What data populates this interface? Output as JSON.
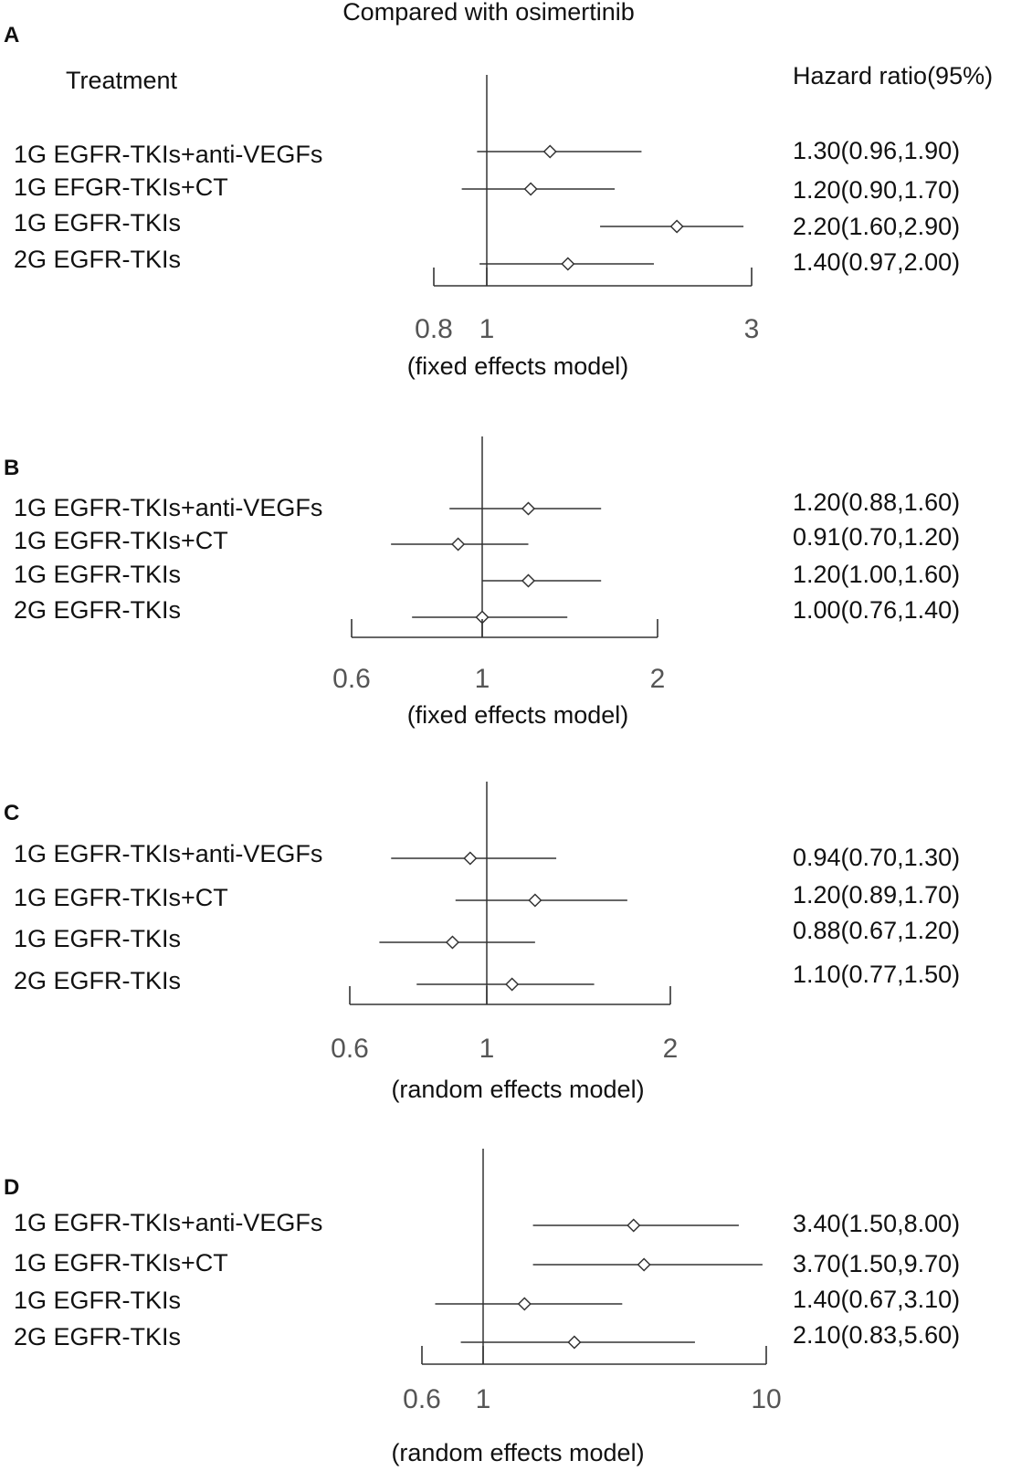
{
  "title": "Compared with osimertinib",
  "header": {
    "treatment": "Treatment",
    "hazard_ratio": "Hazard ratio(95%)"
  },
  "chart_data": [
    {
      "type": "forest",
      "panel": "A",
      "model": "(fixed effects model)",
      "ticks": [
        0.8,
        1,
        3
      ],
      "tick_labels": [
        "0.8",
        "1",
        "3"
      ],
      "xlim": [
        0.8,
        3
      ],
      "reference": 1,
      "rows": [
        {
          "label": "1G EGFR-TKIs+anti-VEGFs",
          "hr": 1.3,
          "lo": 0.96,
          "hi": 1.9,
          "text": "1.30(0.96,1.90)"
        },
        {
          "label": "1G EFGR-TKIs+CT",
          "hr": 1.2,
          "lo": 0.9,
          "hi": 1.7,
          "text": "1.20(0.90,1.70)"
        },
        {
          "label": "1G EGFR-TKIs",
          "hr": 2.2,
          "lo": 1.6,
          "hi": 2.9,
          "text": "2.20(1.60,2.90)"
        },
        {
          "label": "2G EGFR-TKIs",
          "hr": 1.4,
          "lo": 0.97,
          "hi": 2.0,
          "text": "1.40(0.97,2.00)"
        }
      ]
    },
    {
      "type": "forest",
      "panel": "B",
      "model": "(fixed effects model)",
      "ticks": [
        0.6,
        1,
        2
      ],
      "tick_labels": [
        "0.6",
        "1",
        "2"
      ],
      "xlim": [
        0.6,
        2
      ],
      "reference": 1,
      "rows": [
        {
          "label": "1G EGFR-TKIs+anti-VEGFs",
          "hr": 1.2,
          "lo": 0.88,
          "hi": 1.6,
          "text": "1.20(0.88,1.60)"
        },
        {
          "label": "1G EGFR-TKIs+CT",
          "hr": 0.91,
          "lo": 0.7,
          "hi": 1.2,
          "text": "0.91(0.70,1.20)"
        },
        {
          "label": "1G EGFR-TKIs",
          "hr": 1.2,
          "lo": 1.0,
          "hi": 1.6,
          "text": "1.20(1.00,1.60)"
        },
        {
          "label": "2G EGFR-TKIs",
          "hr": 1.0,
          "lo": 0.76,
          "hi": 1.4,
          "text": "1.00(0.76,1.40)"
        }
      ]
    },
    {
      "type": "forest",
      "panel": "C",
      "model": "(random effects model)",
      "ticks": [
        0.6,
        1,
        2
      ],
      "tick_labels": [
        "0.6",
        "1",
        "2"
      ],
      "xlim": [
        0.6,
        2
      ],
      "reference": 1,
      "rows": [
        {
          "label": "1G EGFR-TKIs+anti-VEGFs",
          "hr": 0.94,
          "lo": 0.7,
          "hi": 1.3,
          "text": "0.94(0.70,1.30)"
        },
        {
          "label": "1G EGFR-TKIs+CT",
          "hr": 1.2,
          "lo": 0.89,
          "hi": 1.7,
          "text": "1.20(0.89,1.70)"
        },
        {
          "label": "1G EGFR-TKIs",
          "hr": 0.88,
          "lo": 0.67,
          "hi": 1.2,
          "text": "0.88(0.67,1.20)"
        },
        {
          "label": "2G EGFR-TKIs",
          "hr": 1.1,
          "lo": 0.77,
          "hi": 1.5,
          "text": "1.10(0.77,1.50)"
        }
      ]
    },
    {
      "type": "forest",
      "panel": "D",
      "model": "(random effects model)",
      "ticks": [
        0.6,
        1,
        10
      ],
      "tick_labels": [
        "0.6",
        "1",
        "10"
      ],
      "xlim": [
        0.6,
        10
      ],
      "reference": 1,
      "rows": [
        {
          "label": "1G EGFR-TKIs+anti-VEGFs",
          "hr": 3.4,
          "lo": 1.5,
          "hi": 8.0,
          "text": "3.40(1.50,8.00)"
        },
        {
          "label": "1G EGFR-TKIs+CT",
          "hr": 3.7,
          "lo": 1.5,
          "hi": 9.7,
          "text": "3.70(1.50,9.70)"
        },
        {
          "label": "1G EGFR-TKIs",
          "hr": 1.4,
          "lo": 0.67,
          "hi": 3.1,
          "text": "1.40(0.67,3.10)"
        },
        {
          "label": "2G EGFR-TKIs",
          "hr": 2.1,
          "lo": 0.83,
          "hi": 5.6,
          "text": "2.10(0.83,5.60)"
        }
      ]
    }
  ]
}
